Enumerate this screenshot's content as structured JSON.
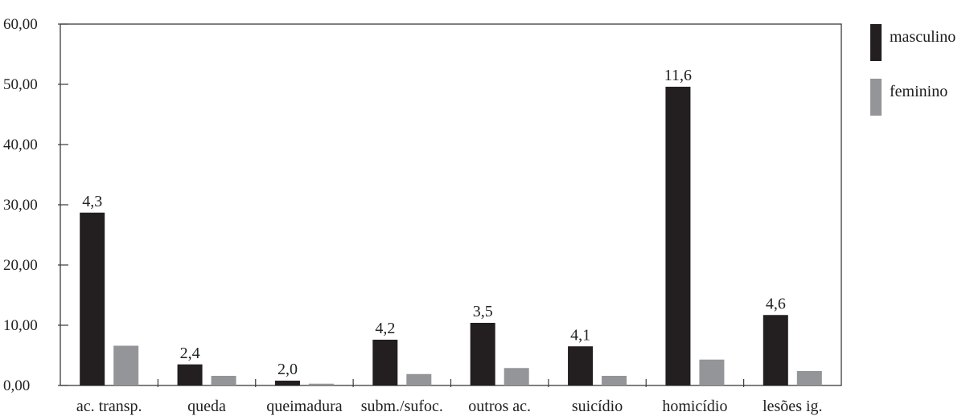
{
  "chart_data": {
    "type": "bar",
    "categories": [
      "ac. transp.",
      "queda",
      "queimadura",
      "subm./sufoc.",
      "outros ac.",
      "suicídio",
      "homicídio",
      "lesões ig."
    ],
    "series": [
      {
        "name": "masculino",
        "color": "#231f20",
        "values": [
          28.7,
          3.5,
          0.8,
          7.6,
          10.4,
          6.5,
          49.6,
          11.7
        ]
      },
      {
        "name": "feminino",
        "color": "#939598",
        "values": [
          6.6,
          1.6,
          0.3,
          1.9,
          2.9,
          1.6,
          4.3,
          2.4
        ]
      }
    ],
    "data_labels": [
      "4,3",
      "2,4",
      "2,0",
      "4,2",
      "3,5",
      "4,1",
      "11,6",
      "4,6"
    ],
    "y_ticks": [
      "0,00",
      "10,00",
      "20,00",
      "30,00",
      "40,00",
      "50,00",
      "60,00"
    ],
    "ylim": [
      0,
      60
    ],
    "title": "",
    "xlabel": "",
    "ylabel": "",
    "legend_position": "top-right",
    "grid": false
  }
}
